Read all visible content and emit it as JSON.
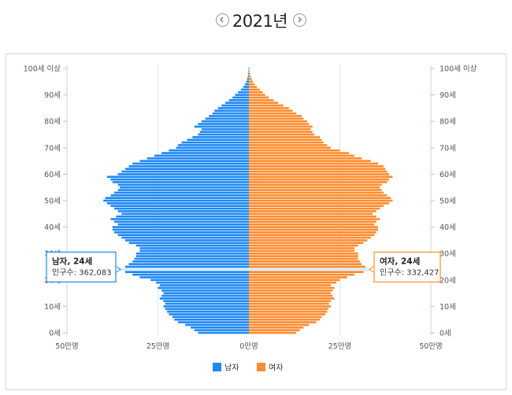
{
  "header": {
    "year_label": "2021년"
  },
  "colors": {
    "male": "#1e88f5",
    "female": "#ff8c2e",
    "highlight": "#bfe3ff"
  },
  "chart_data": {
    "type": "bar",
    "orientation": "horizontal-population-pyramid",
    "x_axis": {
      "ticks": [
        "50만명",
        "25만명",
        "0만명",
        "25만명",
        "50만명"
      ],
      "range_max": 500000
    },
    "y_axis_ticks": [
      "0세",
      "10세",
      "20세",
      "30세",
      "40세",
      "50세",
      "60세",
      "70세",
      "80세",
      "90세",
      "100세 이상"
    ],
    "legend": [
      {
        "name": "남자",
        "color": "#1e88f5"
      },
      {
        "name": "여자",
        "color": "#ff8c2e"
      }
    ],
    "ages": [
      0,
      1,
      2,
      3,
      4,
      5,
      6,
      7,
      8,
      9,
      10,
      11,
      12,
      13,
      14,
      15,
      16,
      17,
      18,
      19,
      20,
      21,
      22,
      23,
      24,
      25,
      26,
      27,
      28,
      29,
      30,
      31,
      32,
      33,
      34,
      35,
      36,
      37,
      38,
      39,
      40,
      41,
      42,
      43,
      44,
      45,
      46,
      47,
      48,
      49,
      50,
      51,
      52,
      53,
      54,
      55,
      56,
      57,
      58,
      59,
      60,
      61,
      62,
      63,
      64,
      65,
      66,
      67,
      68,
      69,
      70,
      71,
      72,
      73,
      74,
      75,
      76,
      77,
      78,
      79,
      80,
      81,
      82,
      83,
      84,
      85,
      86,
      87,
      88,
      89,
      90,
      91,
      92,
      93,
      94,
      95,
      96,
      97,
      98,
      99,
      "100+"
    ],
    "series": [
      {
        "name": "남자",
        "values": [
          140000,
          150000,
          160000,
          175000,
          195000,
          205000,
          210000,
          220000,
          225000,
          230000,
          235000,
          230000,
          235000,
          245000,
          240000,
          235000,
          240000,
          250000,
          245000,
          255000,
          270000,
          300000,
          320000,
          340000,
          362083,
          340000,
          330000,
          320000,
          315000,
          310000,
          310000,
          300000,
          300000,
          310000,
          330000,
          340000,
          350000,
          360000,
          370000,
          375000,
          375000,
          360000,
          370000,
          380000,
          365000,
          350000,
          360000,
          370000,
          380000,
          390000,
          400000,
          395000,
          380000,
          370000,
          360000,
          355000,
          360000,
          375000,
          380000,
          390000,
          360000,
          350000,
          340000,
          330000,
          320000,
          300000,
          280000,
          260000,
          240000,
          220000,
          200000,
          195000,
          185000,
          170000,
          155000,
          140000,
          135000,
          130000,
          150000,
          140000,
          130000,
          120000,
          110000,
          100000,
          95000,
          85000,
          75000,
          65000,
          55000,
          45000,
          38000,
          30000,
          22000,
          16000,
          11000,
          7500,
          5000,
          3000,
          2000,
          1200,
          1000
        ]
      },
      {
        "name": "여자",
        "values": [
          130000,
          140000,
          150000,
          165000,
          185000,
          195000,
          200000,
          210000,
          215000,
          218000,
          225000,
          220000,
          225000,
          235000,
          230000,
          225000,
          230000,
          235000,
          225000,
          240000,
          250000,
          270000,
          290000,
          315000,
          332427,
          320000,
          310000,
          305000,
          300000,
          300000,
          300000,
          290000,
          290000,
          300000,
          315000,
          325000,
          335000,
          345000,
          350000,
          355000,
          355000,
          345000,
          350000,
          360000,
          350000,
          340000,
          350000,
          360000,
          370000,
          385000,
          395000,
          390000,
          380000,
          370000,
          365000,
          360000,
          365000,
          380000,
          385000,
          395000,
          385000,
          380000,
          375000,
          370000,
          355000,
          335000,
          310000,
          290000,
          275000,
          250000,
          225000,
          215000,
          205000,
          200000,
          195000,
          180000,
          175000,
          170000,
          175000,
          165000,
          160000,
          150000,
          145000,
          130000,
          120000,
          110000,
          95000,
          80000,
          68000,
          55000,
          45000,
          38000,
          30000,
          22000,
          16000,
          11000,
          8000,
          5000,
          3500,
          2000,
          1800
        ]
      }
    ],
    "highlight": {
      "age": 24
    }
  },
  "tooltips": {
    "male": {
      "title": "남자, 24세",
      "value": "인구수: 362,083"
    },
    "female": {
      "title": "여자, 24세",
      "value": "인구수: 332,427"
    }
  }
}
